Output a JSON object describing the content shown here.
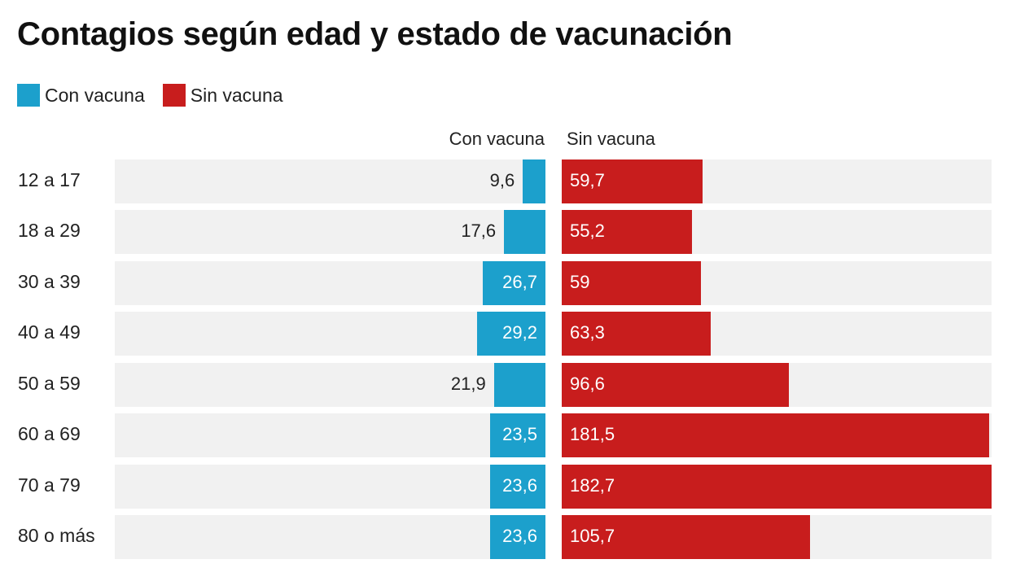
{
  "chart_data": {
    "type": "bar",
    "orientation": "horizontal-diverging",
    "title": "Contagios según edad y estado de vacunación",
    "legend": [
      {
        "name": "Con vacuna",
        "color": "#1ca0cc"
      },
      {
        "name": "Sin vacuna",
        "color": "#c81d1d"
      }
    ],
    "legend_position": "top-left",
    "column_headers": [
      "Con vacuna",
      "Sin vacuna"
    ],
    "categories": [
      "12 a 17",
      "18 a 29",
      "30 a 39",
      "40 a 49",
      "50 a 59",
      "60 a 69",
      "70 a 79",
      "80 o más"
    ],
    "series": [
      {
        "name": "Con vacuna",
        "values": [
          9.6,
          17.6,
          26.7,
          29.2,
          21.9,
          23.5,
          23.6,
          23.6
        ],
        "labels": [
          "9,6",
          "17,6",
          "26,7",
          "29,2",
          "21,9",
          "23,5",
          "23,6",
          "23,6"
        ]
      },
      {
        "name": "Sin vacuna",
        "values": [
          59.7,
          55.2,
          59,
          63.3,
          96.6,
          181.5,
          182.7,
          105.7
        ],
        "labels": [
          "59,7",
          "55,2",
          "59",
          "63,3",
          "96,6",
          "181,5",
          "182,7",
          "105,7"
        ]
      }
    ],
    "xlim": [
      0,
      182.7
    ],
    "grid": false,
    "xlabel": "",
    "ylabel": ""
  },
  "colors": {
    "con_vacuna": "#1ca0cc",
    "sin_vacuna": "#c81d1d",
    "row_background": "#f1f1f1"
  }
}
